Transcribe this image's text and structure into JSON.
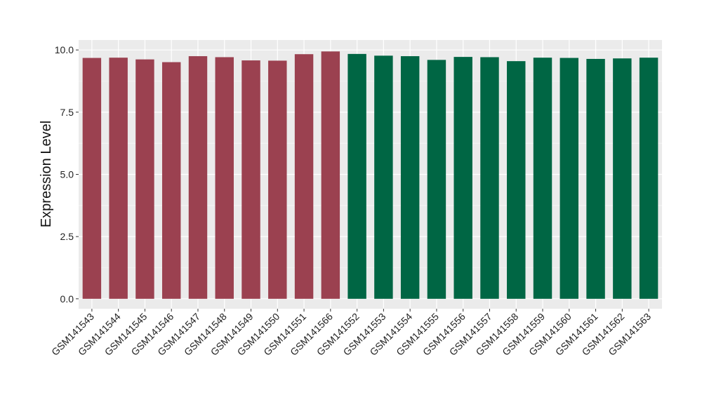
{
  "chart_data": {
    "type": "bar",
    "title": "",
    "xlabel": "",
    "ylabel": "Expression Level",
    "ylim": [
      -0.4,
      10.4
    ],
    "yticks": [
      0.0,
      2.5,
      5.0,
      7.5,
      10.0
    ],
    "ytick_labels": [
      "0.0",
      "2.5",
      "5.0",
      "7.5",
      "10.0"
    ],
    "grid": true,
    "legend": "none",
    "background": "#ebebeb",
    "categories": [
      "GSM141543",
      "GSM141544",
      "GSM141545",
      "GSM141546",
      "GSM141547",
      "GSM141548",
      "GSM141549",
      "GSM141550",
      "GSM141551",
      "GSM141566",
      "GSM141552",
      "GSM141553",
      "GSM141554",
      "GSM141555",
      "GSM141556",
      "GSM141557",
      "GSM141558",
      "GSM141559",
      "GSM141560",
      "GSM141561",
      "GSM141562",
      "GSM141563"
    ],
    "values": [
      9.68,
      9.69,
      9.62,
      9.51,
      9.75,
      9.71,
      9.58,
      9.57,
      9.83,
      9.94,
      9.84,
      9.77,
      9.75,
      9.6,
      9.72,
      9.71,
      9.55,
      9.69,
      9.68,
      9.64,
      9.66,
      9.69
    ],
    "bar_colors": [
      "#9b4150",
      "#9b4150",
      "#9b4150",
      "#9b4150",
      "#9b4150",
      "#9b4150",
      "#9b4150",
      "#9b4150",
      "#9b4150",
      "#9b4150",
      "#006644",
      "#006644",
      "#006644",
      "#006644",
      "#006644",
      "#006644",
      "#006644",
      "#006644",
      "#006644",
      "#006644",
      "#006644",
      "#006644"
    ]
  }
}
